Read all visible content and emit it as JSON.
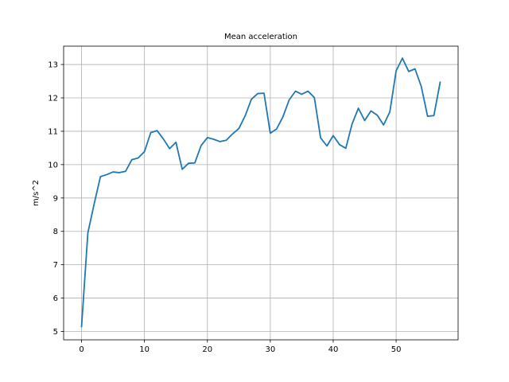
{
  "chart_data": {
    "type": "line",
    "title": "Mean acceleration",
    "xlabel": "",
    "ylabel": "m/s^2",
    "xlim": [
      -2.85,
      59.85
    ],
    "ylim": [
      4.75,
      13.55
    ],
    "xticks": [
      0,
      10,
      20,
      30,
      40,
      50
    ],
    "yticks": [
      5,
      6,
      7,
      8,
      9,
      10,
      11,
      12,
      13
    ],
    "grid": true,
    "series": [
      {
        "color": "#1f77b4",
        "x": [
          0,
          1,
          2,
          3,
          4,
          5,
          6,
          7,
          8,
          9,
          10,
          11,
          12,
          13,
          14,
          15,
          16,
          17,
          18,
          19,
          20,
          21,
          22,
          23,
          24,
          25,
          26,
          27,
          28,
          29,
          30,
          31,
          32,
          33,
          34,
          35,
          36,
          37,
          38,
          39,
          40,
          41,
          42,
          43,
          44,
          45,
          46,
          47,
          48,
          49,
          50,
          51,
          52,
          53,
          54,
          55,
          56,
          57
        ],
        "values": [
          5.15,
          7.95,
          8.82,
          9.64,
          9.7,
          9.78,
          9.76,
          9.8,
          10.15,
          10.2,
          10.39,
          10.96,
          11.02,
          10.77,
          10.48,
          10.67,
          9.86,
          10.04,
          10.05,
          10.57,
          10.81,
          10.76,
          10.69,
          10.73,
          10.92,
          11.08,
          11.46,
          11.96,
          12.13,
          12.14,
          10.94,
          11.07,
          11.43,
          11.94,
          12.2,
          12.11,
          12.2,
          12.01,
          10.8,
          10.56,
          10.87,
          10.6,
          10.49,
          11.22,
          11.69,
          11.32,
          11.61,
          11.48,
          11.19,
          11.58,
          12.81,
          13.19,
          12.79,
          12.87,
          12.34,
          11.45,
          11.47,
          12.47
        ]
      }
    ]
  }
}
